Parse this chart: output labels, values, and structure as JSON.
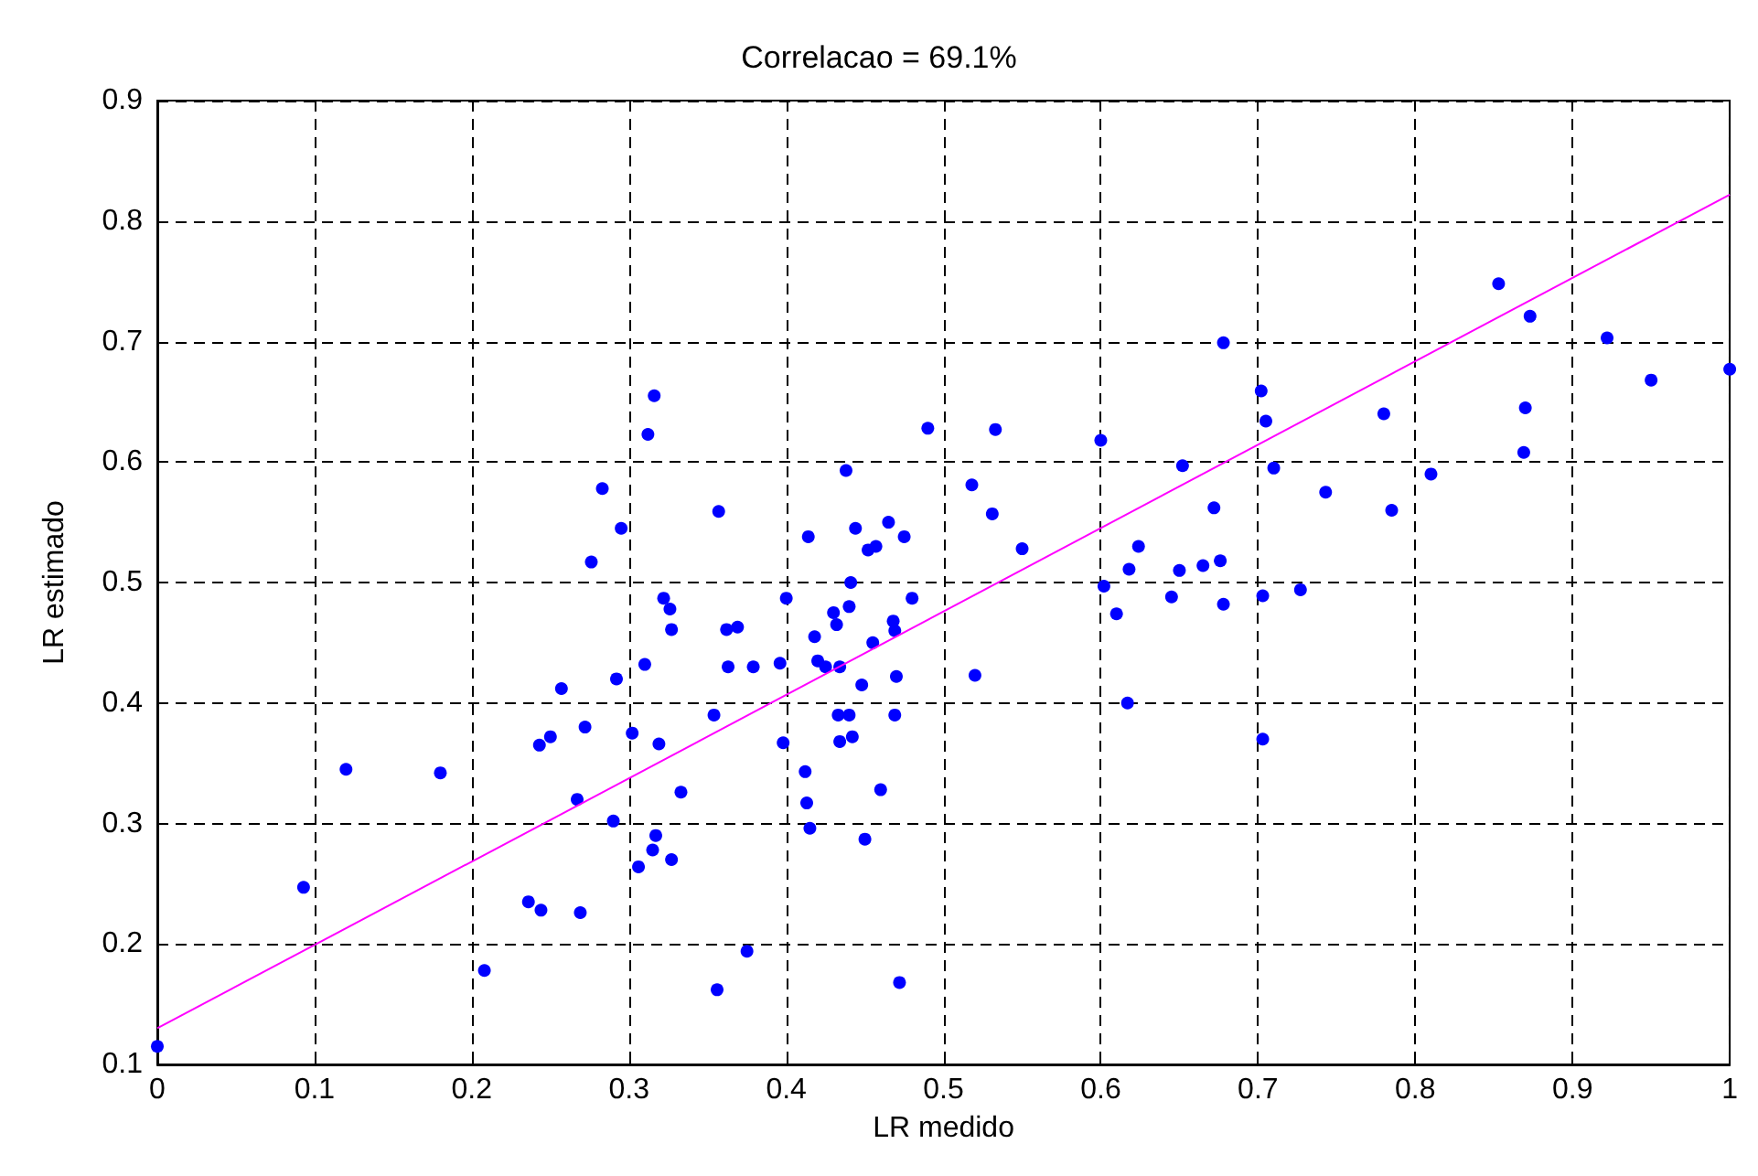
{
  "chart_data": {
    "type": "scatter",
    "title": "Correlacao = 69.1%",
    "xlabel": "LR medido",
    "ylabel": "LR estimado",
    "xlim": [
      0,
      1
    ],
    "xticks": [
      0,
      0.1,
      0.2,
      0.3,
      0.4,
      0.5,
      0.6,
      0.7,
      0.8,
      0.9,
      1
    ],
    "ylim": [
      0.1,
      0.9
    ],
    "yticks": [
      0.1,
      0.2,
      0.3,
      0.4,
      0.5,
      0.6,
      0.7,
      0.8,
      0.9
    ],
    "grid": true,
    "series": [
      {
        "color": "#0000ff",
        "marker": "circle",
        "x": [
          0,
          0.093,
          0.12,
          0.18,
          0.208,
          0.236,
          0.243,
          0.244,
          0.25,
          0.257,
          0.267,
          0.269,
          0.272,
          0.276,
          0.283,
          0.29,
          0.292,
          0.295,
          0.302,
          0.306,
          0.31,
          0.312,
          0.315,
          0.316,
          0.317,
          0.319,
          0.322,
          0.326,
          0.327,
          0.327,
          0.333,
          0.354,
          0.356,
          0.357,
          0.362,
          0.363,
          0.369,
          0.375,
          0.379,
          0.396,
          0.398,
          0.4,
          0.412,
          0.413,
          0.415,
          0.414,
          0.418,
          0.42,
          0.425,
          0.43,
          0.432,
          0.433,
          0.434,
          0.434,
          0.438,
          0.44,
          0.44,
          0.441,
          0.442,
          0.444,
          0.448,
          0.45,
          0.452,
          0.455,
          0.457,
          0.46,
          0.465,
          0.468,
          0.469,
          0.469,
          0.47,
          0.472,
          0.475,
          0.48,
          0.49,
          0.518,
          0.52,
          0.531,
          0.533,
          0.55,
          0.6,
          0.602,
          0.61,
          0.617,
          0.618,
          0.624,
          0.645,
          0.65,
          0.652,
          0.665,
          0.672,
          0.676,
          0.678,
          0.678,
          0.702,
          0.703,
          0.703,
          0.705,
          0.71,
          0.727,
          0.743,
          0.78,
          0.785,
          0.81,
          0.853,
          0.869,
          0.87,
          0.873,
          0.922,
          0.95,
          1.0
        ],
        "values": [
          0.115,
          0.247,
          0.345,
          0.342,
          0.178,
          0.235,
          0.365,
          0.228,
          0.372,
          0.412,
          0.32,
          0.226,
          0.38,
          0.517,
          0.578,
          0.302,
          0.42,
          0.545,
          0.375,
          0.264,
          0.432,
          0.623,
          0.278,
          0.655,
          0.29,
          0.366,
          0.487,
          0.478,
          0.27,
          0.461,
          0.326,
          0.39,
          0.162,
          0.559,
          0.461,
          0.43,
          0.463,
          0.194,
          0.43,
          0.433,
          0.367,
          0.487,
          0.343,
          0.317,
          0.296,
          0.538,
          0.455,
          0.435,
          0.43,
          0.475,
          0.465,
          0.39,
          0.43,
          0.368,
          0.593,
          0.39,
          0.48,
          0.5,
          0.372,
          0.545,
          0.415,
          0.287,
          0.527,
          0.45,
          0.53,
          0.328,
          0.55,
          0.468,
          0.39,
          0.46,
          0.422,
          0.168,
          0.538,
          0.487,
          0.628,
          0.581,
          0.423,
          0.557,
          0.627,
          0.528,
          0.618,
          0.497,
          0.474,
          0.4,
          0.511,
          0.53,
          0.488,
          0.51,
          0.597,
          0.514,
          0.562,
          0.518,
          0.699,
          0.482,
          0.659,
          0.37,
          0.489,
          0.634,
          0.595,
          0.494,
          0.575,
          0.64,
          0.56,
          0.59,
          0.748,
          0.608,
          0.645,
          0.721,
          0.703,
          0.668,
          0.677
        ]
      },
      {
        "type": "line",
        "color": "#ff00ff",
        "marker": "none",
        "line_style": "solid",
        "x": [
          0,
          1
        ],
        "values": [
          0.13,
          0.822
        ]
      }
    ]
  }
}
